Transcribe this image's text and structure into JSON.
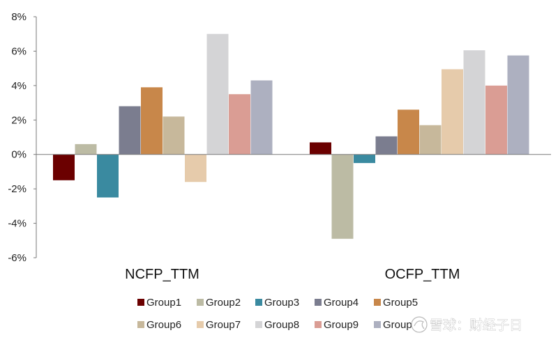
{
  "chart_data": {
    "type": "bar",
    "categories": [
      "NCFP_TTM",
      "OCFP_TTM"
    ],
    "series": [
      {
        "name": "Group1",
        "color": "#6b0000",
        "values": [
          -1.5,
          0.7
        ]
      },
      {
        "name": "Group2",
        "color": "#bcbba4",
        "values": [
          0.6,
          -4.9
        ]
      },
      {
        "name": "Group3",
        "color": "#3a8aa0",
        "values": [
          -2.5,
          -0.5
        ]
      },
      {
        "name": "Group4",
        "color": "#7b7d8f",
        "values": [
          2.8,
          1.05
        ]
      },
      {
        "name": "Group5",
        "color": "#c8874a",
        "values": [
          3.9,
          2.6
        ]
      },
      {
        "name": "Group6",
        "color": "#c7b89b",
        "values": [
          2.2,
          1.7
        ]
      },
      {
        "name": "Group7",
        "color": "#e6cbab",
        "values": [
          -1.6,
          4.95
        ]
      },
      {
        "name": "Group8",
        "color": "#d4d4d6",
        "values": [
          7.0,
          6.05
        ]
      },
      {
        "name": "Group9",
        "color": "#da9d94",
        "values": [
          3.5,
          4.0
        ]
      },
      {
        "name": "Group10",
        "color": "#adb0c0",
        "values": [
          4.3,
          5.75
        ]
      }
    ],
    "yticks": [
      "8%",
      "6%",
      "4%",
      "2%",
      "0%",
      "-2%",
      "-4%",
      "-6%"
    ],
    "ylim": [
      -6,
      8
    ],
    "title": "",
    "xlabel": "",
    "ylabel": "",
    "legend_position": "bottom",
    "grid": false
  },
  "watermark": {
    "text": "雪球：财经子日"
  }
}
